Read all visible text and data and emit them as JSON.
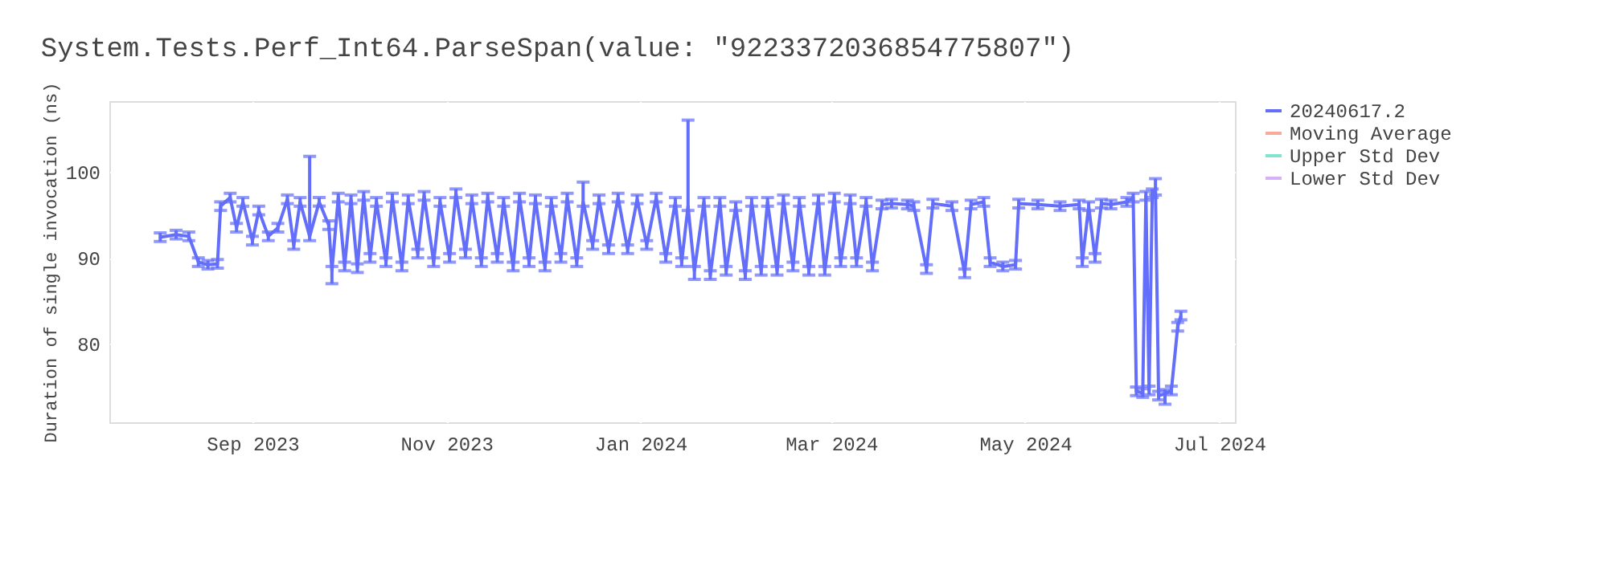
{
  "chart_data": {
    "type": "line",
    "title": "System.Tests.Perf_Int64.ParseSpan(value: \"9223372036854775807\")",
    "ylabel": "Duration of single invocation (ns)",
    "xlim": [
      "2023-07-18",
      "2024-07-06"
    ],
    "xticks": [
      {
        "value": "2023-09-01",
        "label": "Sep 2023"
      },
      {
        "value": "2023-11-01",
        "label": "Nov 2023"
      },
      {
        "value": "2024-01-01",
        "label": "Jan 2024"
      },
      {
        "value": "2024-03-01",
        "label": "Mar 2024"
      },
      {
        "value": "2024-05-01",
        "label": "May 2024"
      },
      {
        "value": "2024-07-01",
        "label": "Jul 2024"
      }
    ],
    "ylim": [
      70.9,
      108.2
    ],
    "yticks": [
      80,
      90,
      100
    ],
    "grid": true,
    "legend": "right",
    "line_style": "solid",
    "series": [
      {
        "name": "20240617.2",
        "color": "#636efa",
        "x": [
          "2023-08-03",
          "2023-08-08",
          "2023-08-12",
          "2023-08-15",
          "2023-08-18",
          "2023-08-21",
          "2023-08-22",
          "2023-08-25",
          "2023-08-27",
          "2023-08-29",
          "2023-09-01",
          "2023-09-03",
          "2023-09-06",
          "2023-09-09",
          "2023-09-12",
          "2023-09-14",
          "2023-09-16",
          "2023-09-19",
          "2023-09-22",
          "2023-09-25",
          "2023-09-26",
          "2023-09-28",
          "2023-09-30",
          "2023-10-02",
          "2023-10-04",
          "2023-10-06",
          "2023-10-08",
          "2023-10-10",
          "2023-10-13",
          "2023-10-15",
          "2023-10-18",
          "2023-10-20",
          "2023-10-23",
          "2023-10-25",
          "2023-10-28",
          "2023-10-30",
          "2023-11-02",
          "2023-11-04",
          "2023-11-07",
          "2023-11-09",
          "2023-11-12",
          "2023-11-14",
          "2023-11-17",
          "2023-11-19",
          "2023-11-22",
          "2023-11-24",
          "2023-11-27",
          "2023-11-29",
          "2023-12-02",
          "2023-12-04",
          "2023-12-07",
          "2023-12-09",
          "2023-12-12",
          "2023-12-14",
          "2023-12-17",
          "2023-12-19",
          "2023-12-22",
          "2023-12-25",
          "2023-12-28",
          "2023-12-31",
          "2024-01-03",
          "2024-01-06",
          "2024-01-09",
          "2024-01-12",
          "2024-01-14",
          "2024-01-16",
          "2024-01-18",
          "2024-01-21",
          "2024-01-23",
          "2024-01-26",
          "2024-01-28",
          "2024-01-31",
          "2024-02-03",
          "2024-02-05",
          "2024-02-08",
          "2024-02-10",
          "2024-02-13",
          "2024-02-15",
          "2024-02-18",
          "2024-02-20",
          "2024-02-23",
          "2024-02-26",
          "2024-02-28",
          "2024-03-02",
          "2024-03-04",
          "2024-03-07",
          "2024-03-09",
          "2024-03-12",
          "2024-03-14",
          "2024-03-17",
          "2024-03-20",
          "2024-03-25",
          "2024-03-27",
          "2024-03-31",
          "2024-04-02",
          "2024-04-08",
          "2024-04-12",
          "2024-04-14",
          "2024-04-18",
          "2024-04-20",
          "2024-04-24",
          "2024-04-28",
          "2024-04-29",
          "2024-05-05",
          "2024-05-12",
          "2024-05-18",
          "2024-05-19",
          "2024-05-21",
          "2024-05-23",
          "2024-05-25",
          "2024-05-28",
          "2024-06-02",
          "2024-06-04",
          "2024-06-05",
          "2024-06-07",
          "2024-06-08",
          "2024-06-09",
          "2024-06-10",
          "2024-06-11",
          "2024-06-12",
          "2024-06-14",
          "2024-06-16",
          "2024-06-18",
          "2024-06-19"
        ],
        "values": [
          92.4,
          92.7,
          92.5,
          89.5,
          89.2,
          89.3,
          96.0,
          97.0,
          93.5,
          96.5,
          92.0,
          95.5,
          92.5,
          93.5,
          96.8,
          91.5,
          96.5,
          92.5,
          96.5,
          93.8,
          88.5,
          97.0,
          89.0,
          96.8,
          88.8,
          97.2,
          90.0,
          96.5,
          89.5,
          97.0,
          89.0,
          96.8,
          90.5,
          97.2,
          89.5,
          96.5,
          90.0,
          97.5,
          90.5,
          96.8,
          89.5,
          97.0,
          90.0,
          96.5,
          89.0,
          97.0,
          89.5,
          96.8,
          89.0,
          96.5,
          90.0,
          97.0,
          89.5,
          96.5,
          91.5,
          96.8,
          91.0,
          97.0,
          91.0,
          96.8,
          91.5,
          97.0,
          90.0,
          96.5,
          89.5,
          96.0,
          88.5,
          96.5,
          88.0,
          96.5,
          88.5,
          96.0,
          88.0,
          96.5,
          88.5,
          96.5,
          88.5,
          96.8,
          89.0,
          96.5,
          88.5,
          96.8,
          88.5,
          97.0,
          89.5,
          96.8,
          89.5,
          96.5,
          89.0,
          96.2,
          96.3,
          96.2,
          96.0,
          88.7,
          96.3,
          96.0,
          88.2,
          96.2,
          96.5,
          89.5,
          89.0,
          89.2,
          96.3,
          96.2,
          96.0,
          96.2,
          89.5,
          96.0,
          90.0,
          96.3,
          96.2,
          96.5,
          97.0,
          74.5,
          74.3,
          97.2,
          74.6,
          97.5,
          97.8,
          74.0,
          74.2,
          74.6,
          82.0,
          83.3
        ],
        "errors": [
          0.5,
          0.5,
          0.5,
          0.5,
          0.5,
          0.5,
          0.5,
          0.5,
          0.5,
          0.5,
          0.5,
          0.5,
          0.5,
          0.5,
          0.5,
          0.5,
          0.5,
          [
            92.0,
            101.8
          ],
          0.5,
          0.5,
          [
            87.0,
            89.0
          ],
          0.5,
          0.5,
          0.5,
          0.5,
          0.5,
          0.5,
          0.5,
          0.5,
          0.5,
          0.5,
          0.5,
          0.5,
          0.5,
          0.5,
          0.5,
          0.5,
          0.5,
          0.5,
          0.5,
          0.5,
          0.5,
          0.5,
          0.5,
          0.5,
          0.5,
          0.5,
          0.5,
          0.5,
          0.5,
          0.5,
          0.5,
          0.5,
          [
            96.0,
            98.8
          ],
          0.5,
          0.5,
          0.5,
          0.5,
          0.5,
          0.5,
          0.5,
          0.5,
          0.5,
          0.5,
          0.5,
          [
            95.5,
            106.0
          ],
          [
            87.5,
            89.0
          ],
          0.5,
          0.5,
          0.5,
          0.5,
          0.5,
          0.5,
          0.5,
          0.5,
          0.5,
          0.5,
          0.5,
          0.5,
          0.5,
          0.5,
          0.5,
          0.5,
          0.5,
          0.5,
          0.5,
          0.5,
          0.5,
          0.5,
          0.5,
          0.5,
          0.5,
          0.5,
          0.5,
          0.5,
          0.5,
          0.5,
          0.5,
          0.5,
          0.5,
          0.5,
          0.5,
          0.5,
          0.5,
          0.5,
          0.5,
          0.5,
          0.5,
          0.5,
          0.5,
          0.5,
          0.5,
          0.5,
          0.5,
          0.5,
          0.5,
          0.5,
          0.5,
          [
            97.3,
            99.2
          ],
          0.5,
          [
            73.0,
            74.7
          ],
          0.5,
          0.5,
          0.5
        ]
      },
      {
        "name": "Moving Average",
        "color": "#f7aa9d"
      },
      {
        "name": "Upper Std Dev",
        "color": "#80e5ca"
      },
      {
        "name": "Lower Std Dev",
        "color": "#d5b1fc"
      }
    ]
  }
}
